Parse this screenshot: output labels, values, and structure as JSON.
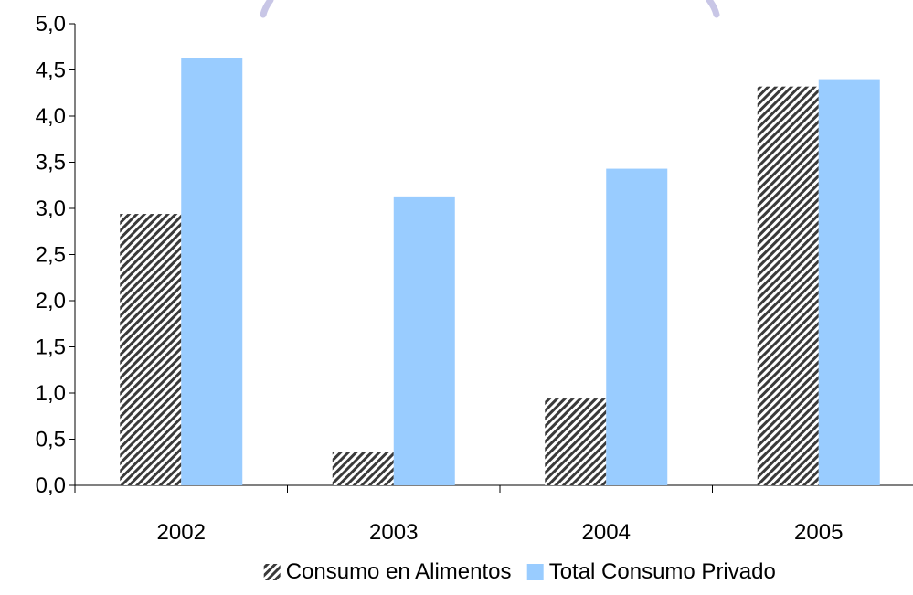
{
  "chart_data": {
    "type": "bar",
    "title": "",
    "xlabel": "",
    "ylabel": "",
    "categories": [
      "2002",
      "2003",
      "2004",
      "2005"
    ],
    "series": [
      {
        "name": "Consumo en Alimentos",
        "values": [
          2.94,
          0.36,
          0.94,
          4.32
        ],
        "color": "#555555",
        "fill": "diagonal-hatch"
      },
      {
        "name": "Total Consumo Privado",
        "values": [
          4.63,
          3.13,
          3.43,
          4.4
        ],
        "color": "#99CCFF",
        "fill": "solid"
      }
    ],
    "ylim": [
      0,
      5.0
    ],
    "y_ticks": [
      "0,0",
      "0,5",
      "1,0",
      "1,5",
      "2,0",
      "2,5",
      "3,0",
      "3,5",
      "4,0",
      "4,5",
      "5,0"
    ],
    "grid": false,
    "legend_position": "bottom"
  }
}
